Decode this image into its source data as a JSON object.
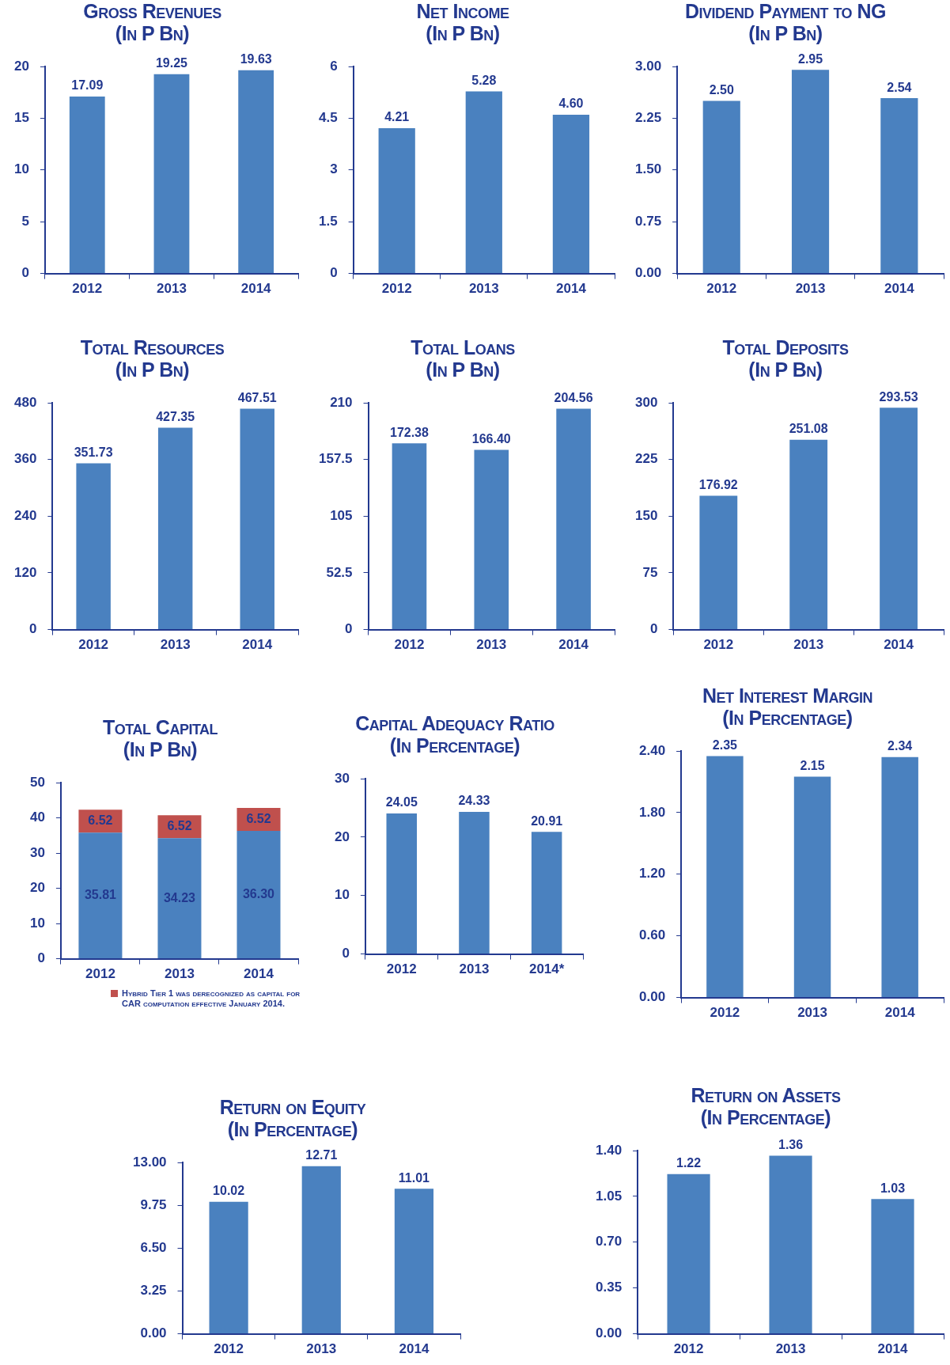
{
  "chart_data": [
    {
      "type": "bar",
      "title": "Gross Revenues",
      "subtitle": "(In P Bn)",
      "categories": [
        "2012",
        "2013",
        "2014"
      ],
      "ylim": [
        0,
        20
      ],
      "yticks": [
        0,
        5,
        10,
        15,
        20
      ],
      "series": [
        {
          "color": "#4a81bf",
          "values": [
            17.09,
            19.25,
            19.63
          ],
          "value_labels": [
            "17.09",
            "19.25",
            "19.63"
          ]
        }
      ]
    },
    {
      "type": "bar",
      "title": "Net Income",
      "subtitle": "(In P Bn)",
      "categories": [
        "2012",
        "2013",
        "2014"
      ],
      "ylim": [
        0,
        6
      ],
      "yticks": [
        0,
        1.5,
        3,
        4.5,
        6
      ],
      "series": [
        {
          "color": "#4a81bf",
          "values": [
            4.21,
            5.28,
            4.6
          ],
          "value_labels": [
            "4.21",
            "5.28",
            "4.60"
          ]
        }
      ]
    },
    {
      "type": "bar",
      "title": "Dividend Payment to NG",
      "subtitle": "(In P Bn)",
      "categories": [
        "2012",
        "2013",
        "2014"
      ],
      "ylim": [
        0,
        3
      ],
      "yticks": [
        {
          "value": 0,
          "label": "0.00"
        },
        {
          "value": 0.75,
          "label": "0.75"
        },
        {
          "value": 1.5,
          "label": "1.50"
        },
        {
          "value": 2.25,
          "label": "2.25"
        },
        {
          "value": 3,
          "label": "3.00"
        }
      ],
      "series": [
        {
          "color": "#4a81bf",
          "values": [
            2.5,
            2.95,
            2.54
          ],
          "value_labels": [
            "2.50",
            "2.95",
            "2.54"
          ]
        }
      ]
    },
    {
      "type": "bar",
      "title": "Total Resources",
      "subtitle": "(In P Bn)",
      "categories": [
        "2012",
        "2013",
        "2014"
      ],
      "ylim": [
        0,
        480
      ],
      "yticks": [
        0,
        120,
        240,
        360,
        480
      ],
      "series": [
        {
          "color": "#4a81bf",
          "values": [
            351.73,
            427.35,
            467.51
          ],
          "value_labels": [
            "351.73",
            "427.35",
            "467.51"
          ]
        }
      ]
    },
    {
      "type": "bar",
      "title": "Total Loans",
      "subtitle": "(In P Bn)",
      "categories": [
        "2012",
        "2013",
        "2014"
      ],
      "ylim": [
        0,
        210
      ],
      "yticks": [
        0,
        52.5,
        105,
        157.5,
        210
      ],
      "series": [
        {
          "color": "#4a81bf",
          "values": [
            172.38,
            166.4,
            204.56
          ],
          "value_labels": [
            "172.38",
            "166.40",
            "204.56"
          ]
        }
      ]
    },
    {
      "type": "bar",
      "title": "Total Deposits",
      "subtitle": "(In P Bn)",
      "categories": [
        "2012",
        "2013",
        "2014"
      ],
      "ylim": [
        0,
        300
      ],
      "yticks": [
        0,
        75,
        150,
        225,
        300
      ],
      "series": [
        {
          "color": "#4a81bf",
          "values": [
            176.92,
            251.08,
            293.53
          ],
          "value_labels": [
            "176.92",
            "251.08",
            "293.53"
          ]
        }
      ]
    },
    {
      "type": "bar",
      "title": "Total Capital",
      "subtitle": "(In P Bn)",
      "categories": [
        "2012",
        "2013",
        "2014"
      ],
      "ylim": [
        0,
        50
      ],
      "yticks": [
        0,
        10,
        20,
        30,
        40,
        50
      ],
      "stacked": true,
      "legend": "bottom",
      "series": [
        {
          "color": "#4a81bf",
          "values": [
            35.81,
            34.23,
            36.3
          ],
          "value_labels": [
            "35.81",
            "34.23",
            "36.30"
          ]
        },
        {
          "name": "Hybrid Tier 1 was derecognized as capital for CAR computation effective January 2014.",
          "color": "#c0504d",
          "values": [
            6.52,
            6.52,
            6.52
          ],
          "value_labels": [
            "6.52",
            "6.52",
            "6.52"
          ]
        }
      ]
    },
    {
      "type": "bar",
      "title": "Capital Adequacy Ratio",
      "subtitle": "(In Percentage)",
      "categories": [
        "2012",
        "2013",
        "2014*"
      ],
      "ylim": [
        0,
        30
      ],
      "yticks": [
        0,
        10,
        20,
        30
      ],
      "series": [
        {
          "color": "#4a81bf",
          "values": [
            24.05,
            24.33,
            20.91
          ],
          "value_labels": [
            "24.05",
            "24.33",
            "20.91"
          ]
        }
      ]
    },
    {
      "type": "bar",
      "title": "Net Interest Margin",
      "subtitle": "(In Percentage)",
      "categories": [
        "2012",
        "2013",
        "2014"
      ],
      "ylim": [
        0,
        2.4
      ],
      "yticks": [
        {
          "value": 0,
          "label": "0.00"
        },
        {
          "value": 0.6,
          "label": "0.60"
        },
        {
          "value": 1.2,
          "label": "1.20"
        },
        {
          "value": 1.8,
          "label": "1.80"
        },
        {
          "value": 2.4,
          "label": "2.40"
        }
      ],
      "series": [
        {
          "color": "#4a81bf",
          "values": [
            2.35,
            2.15,
            2.34
          ],
          "value_labels": [
            "2.35",
            "2.15",
            "2.34"
          ]
        }
      ]
    },
    {
      "type": "bar",
      "title": "Return on Equity",
      "subtitle": "(In Percentage)",
      "categories": [
        "2012",
        "2013",
        "2014"
      ],
      "ylim": [
        0,
        13
      ],
      "yticks": [
        {
          "value": 0,
          "label": "0.00"
        },
        {
          "value": 3.25,
          "label": "3.25"
        },
        {
          "value": 6.5,
          "label": "6.50"
        },
        {
          "value": 9.75,
          "label": "9.75"
        },
        {
          "value": 13,
          "label": "13.00"
        }
      ],
      "series": [
        {
          "color": "#4a81bf",
          "values": [
            10.02,
            12.71,
            11.01
          ],
          "value_labels": [
            "10.02",
            "12.71",
            "11.01"
          ]
        }
      ]
    },
    {
      "type": "bar",
      "title": "Return on Assets",
      "subtitle": "(In Percentage)",
      "categories": [
        "2012",
        "2013",
        "2014"
      ],
      "ylim": [
        0,
        1.4
      ],
      "yticks": [
        {
          "value": 0,
          "label": "0.00"
        },
        {
          "value": 0.35,
          "label": "0.35"
        },
        {
          "value": 0.7,
          "label": "0.70"
        },
        {
          "value": 1.05,
          "label": "1.05"
        },
        {
          "value": 1.4,
          "label": "1.40"
        }
      ],
      "series": [
        {
          "color": "#4a81bf",
          "values": [
            1.22,
            1.36,
            1.03
          ],
          "value_labels": [
            "1.22",
            "1.36",
            "1.03"
          ]
        }
      ]
    }
  ]
}
